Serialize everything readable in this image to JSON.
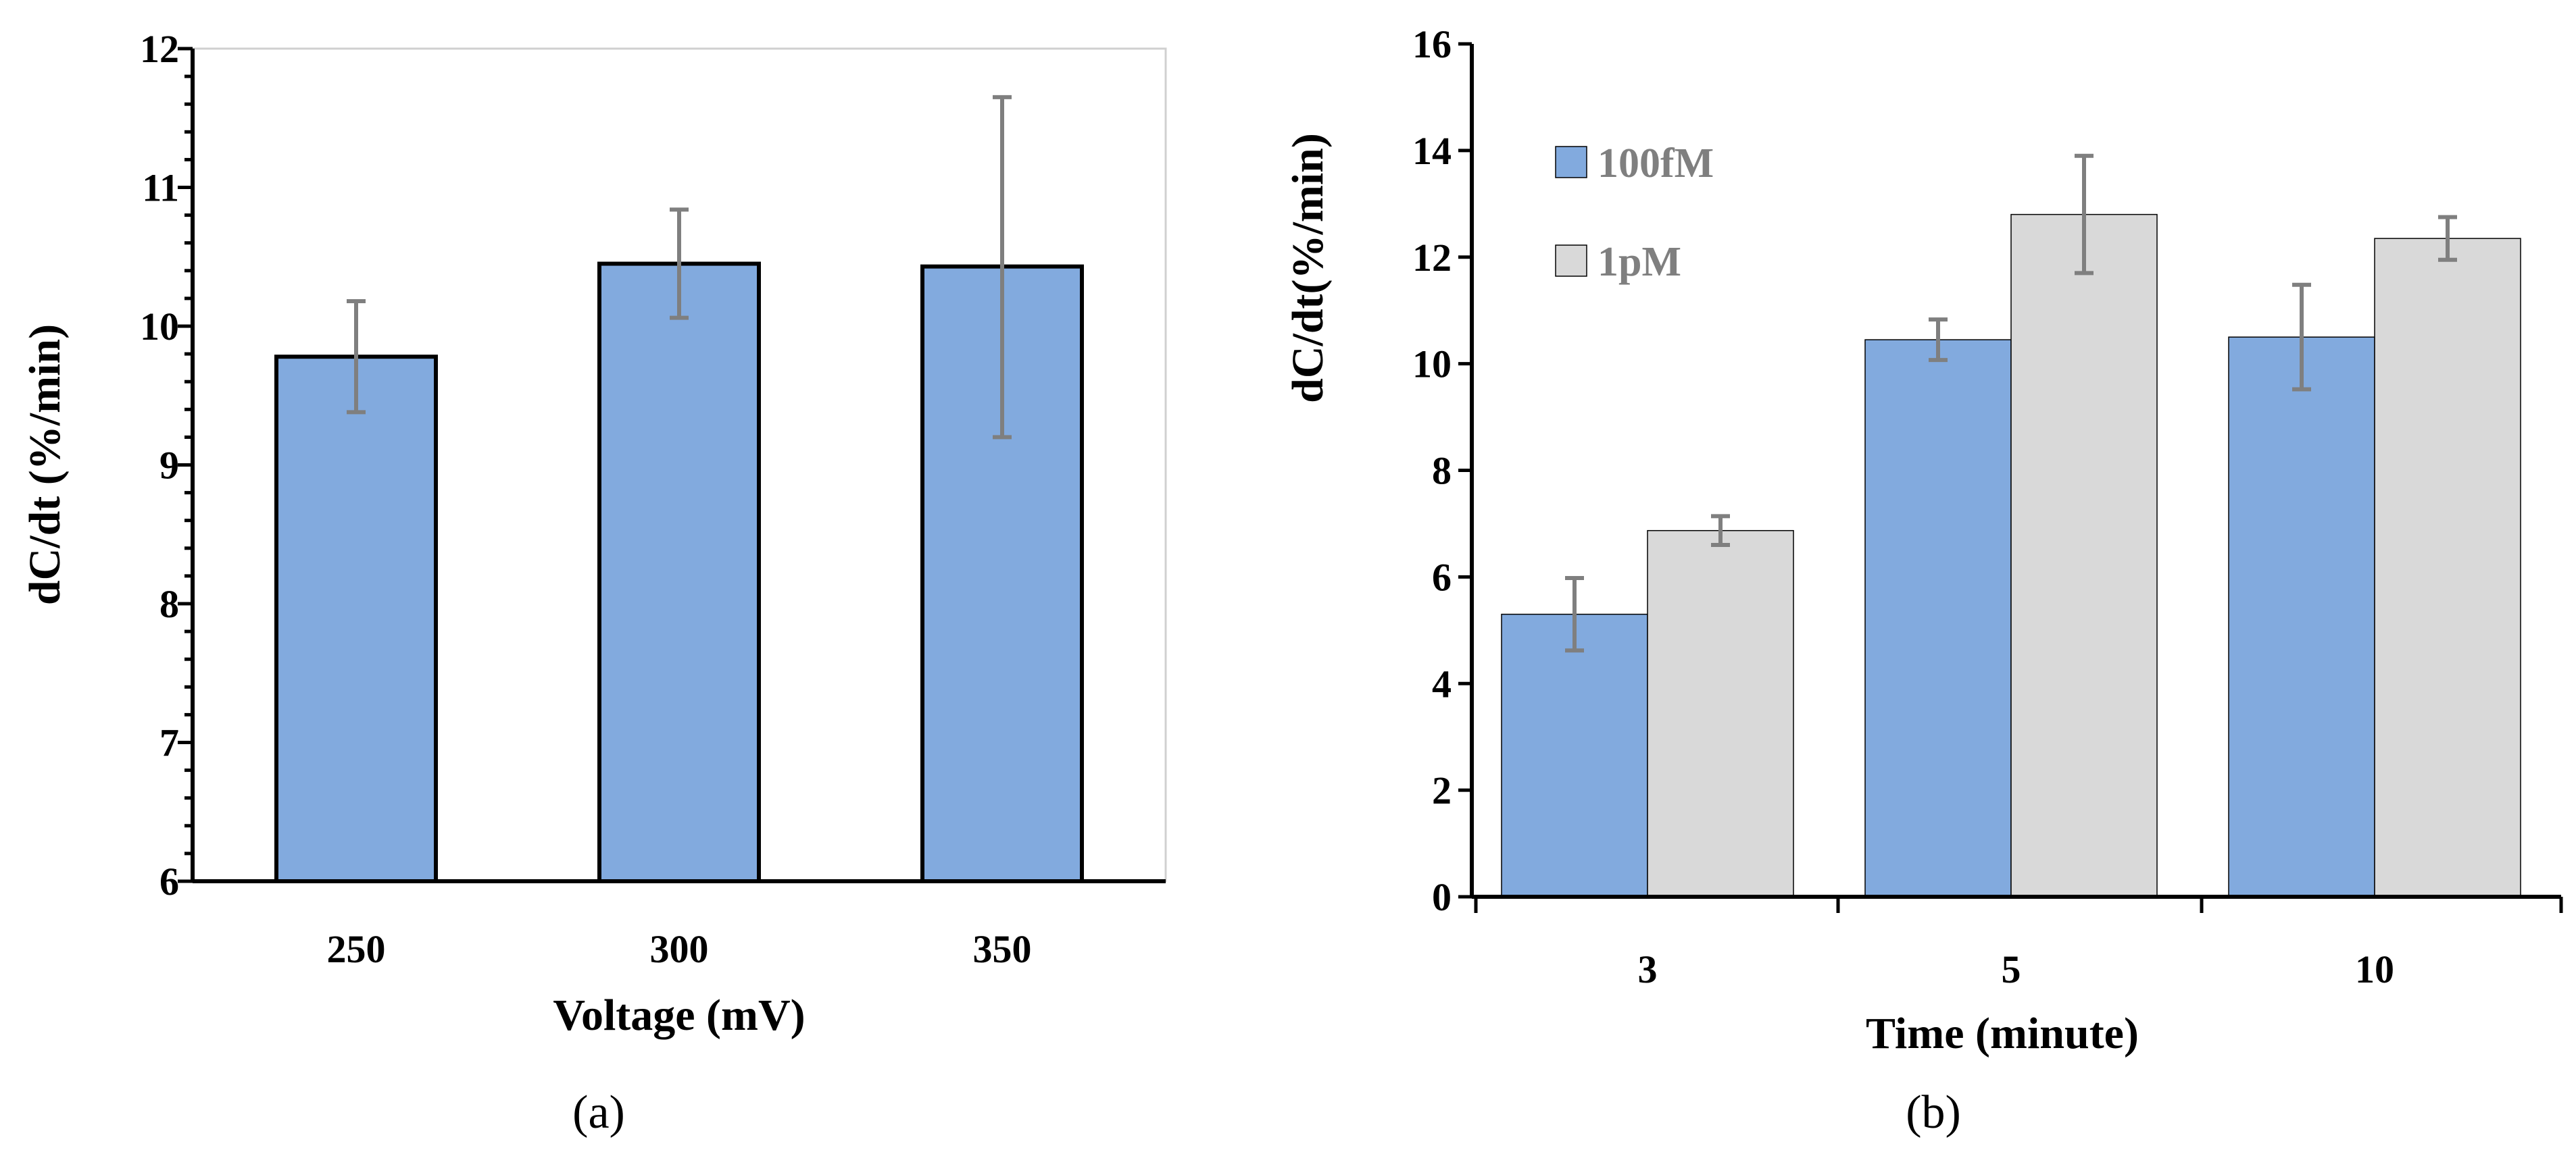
{
  "colors": {
    "blue": "#82aade",
    "gray": "#d9d9d9",
    "error_bar": "#7f7f7f",
    "axis": "#000000",
    "legend_text": "#7f7f7f"
  },
  "chart_data": [
    {
      "type": "bar",
      "caption": "(a)",
      "title": "",
      "xlabel": "Voltage (mV)",
      "ylabel": "dC/dt (%/min)",
      "ylim": [
        6,
        12
      ],
      "yticks": [
        "6",
        "7",
        "8",
        "9",
        "10",
        "11",
        "12"
      ],
      "categories": [
        "250",
        "300",
        "350"
      ],
      "series": [
        {
          "name": "",
          "color": "#82aade",
          "values": [
            9.78,
            10.45,
            10.43
          ],
          "error": [
            [
              9.38,
              10.18
            ],
            [
              10.06,
              10.84
            ],
            [
              9.2,
              11.65
            ]
          ]
        }
      ],
      "grid": false,
      "legend": "none"
    },
    {
      "type": "bar",
      "caption": "(b)",
      "title": "",
      "xlabel": "Time (minute)",
      "ylabel": "dC/dt(%/min)",
      "ylim": [
        0,
        16
      ],
      "yticks": [
        "0",
        "2",
        "4",
        "6",
        "8",
        "10",
        "12",
        "14",
        "16"
      ],
      "categories": [
        "3",
        "5",
        "10"
      ],
      "series": [
        {
          "name": "100fM",
          "color": "#82aade",
          "values": [
            5.3,
            10.45,
            10.5
          ],
          "error": [
            [
              4.62,
              5.98
            ],
            [
              10.07,
              10.83
            ],
            [
              9.52,
              11.48
            ]
          ]
        },
        {
          "name": "1pM",
          "color": "#d9d9d9",
          "values": [
            6.87,
            12.8,
            12.35
          ],
          "error": [
            [
              6.6,
              7.14
            ],
            [
              11.7,
              13.9
            ],
            [
              11.95,
              12.75
            ]
          ]
        }
      ],
      "grid": false,
      "legend": "top-left"
    }
  ]
}
